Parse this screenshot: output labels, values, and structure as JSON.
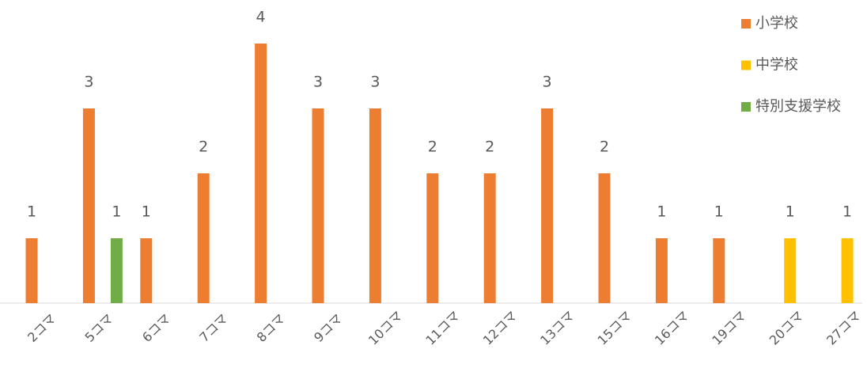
{
  "chart_data": {
    "type": "bar",
    "categories": [
      "2コマ",
      "5コマ",
      "6コマ",
      "7コマ",
      "8コマ",
      "9コマ",
      "10コマ",
      "11コマ",
      "12コマ",
      "13コマ",
      "15コマ",
      "16コマ",
      "19コマ",
      "20コマ",
      "27コマ"
    ],
    "series": [
      {
        "name": "小学校",
        "color": "#ed7d31",
        "values": [
          1,
          3,
          1,
          2,
          4,
          3,
          3,
          2,
          2,
          3,
          2,
          1,
          1,
          null,
          null
        ]
      },
      {
        "name": "中学校",
        "color": "#ffc000",
        "values": [
          null,
          null,
          null,
          null,
          null,
          null,
          null,
          null,
          null,
          null,
          null,
          null,
          null,
          1,
          1
        ]
      },
      {
        "name": "特別支援学校",
        "color": "#70ad47",
        "values": [
          null,
          1,
          null,
          null,
          null,
          null,
          null,
          null,
          null,
          null,
          null,
          null,
          null,
          null,
          null
        ]
      }
    ],
    "ylim": [
      0,
      4
    ],
    "legend": "right"
  }
}
